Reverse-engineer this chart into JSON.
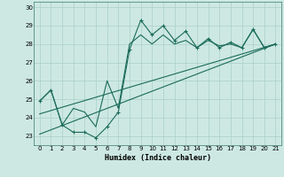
{
  "xlabel": "Humidex (Indice chaleur)",
  "ylabel": "",
  "xlim": [
    -0.5,
    21.5
  ],
  "ylim": [
    22.5,
    30.3
  ],
  "xticks": [
    0,
    1,
    2,
    3,
    4,
    5,
    6,
    7,
    8,
    9,
    10,
    11,
    12,
    13,
    14,
    15,
    16,
    17,
    18,
    19,
    20,
    21
  ],
  "yticks": [
    23,
    24,
    25,
    26,
    27,
    28,
    29,
    30
  ],
  "bg_color": "#cde8e2",
  "grid_color": "#aad0c8",
  "line_color": "#1a6b5a",
  "series_volatile": {
    "x": [
      0,
      1,
      2,
      3,
      4,
      5,
      6,
      7,
      8,
      9,
      10,
      11,
      12,
      13,
      14,
      15,
      16,
      17,
      18,
      19,
      20,
      21
    ],
    "y": [
      24.9,
      25.5,
      23.6,
      23.2,
      23.2,
      22.9,
      23.5,
      24.3,
      27.7,
      29.3,
      28.5,
      29.0,
      28.2,
      28.7,
      27.8,
      28.3,
      27.8,
      28.1,
      27.8,
      28.8,
      27.8,
      28.0
    ]
  },
  "series_smooth": {
    "x": [
      0,
      1,
      2,
      3,
      4,
      5,
      6,
      7,
      8,
      9,
      10,
      11,
      12,
      13,
      14,
      15,
      16,
      17,
      18,
      19,
      20,
      21
    ],
    "y": [
      24.9,
      25.5,
      23.6,
      24.5,
      24.3,
      23.5,
      26.0,
      24.5,
      28.0,
      28.5,
      28.0,
      28.5,
      28.0,
      28.2,
      27.8,
      28.2,
      27.9,
      28.0,
      27.8,
      28.8,
      27.8,
      28.0
    ]
  },
  "series_trend1": {
    "x": [
      0,
      21
    ],
    "y": [
      23.1,
      28.0
    ]
  },
  "series_trend2": {
    "x": [
      0,
      21
    ],
    "y": [
      24.2,
      28.0
    ]
  }
}
